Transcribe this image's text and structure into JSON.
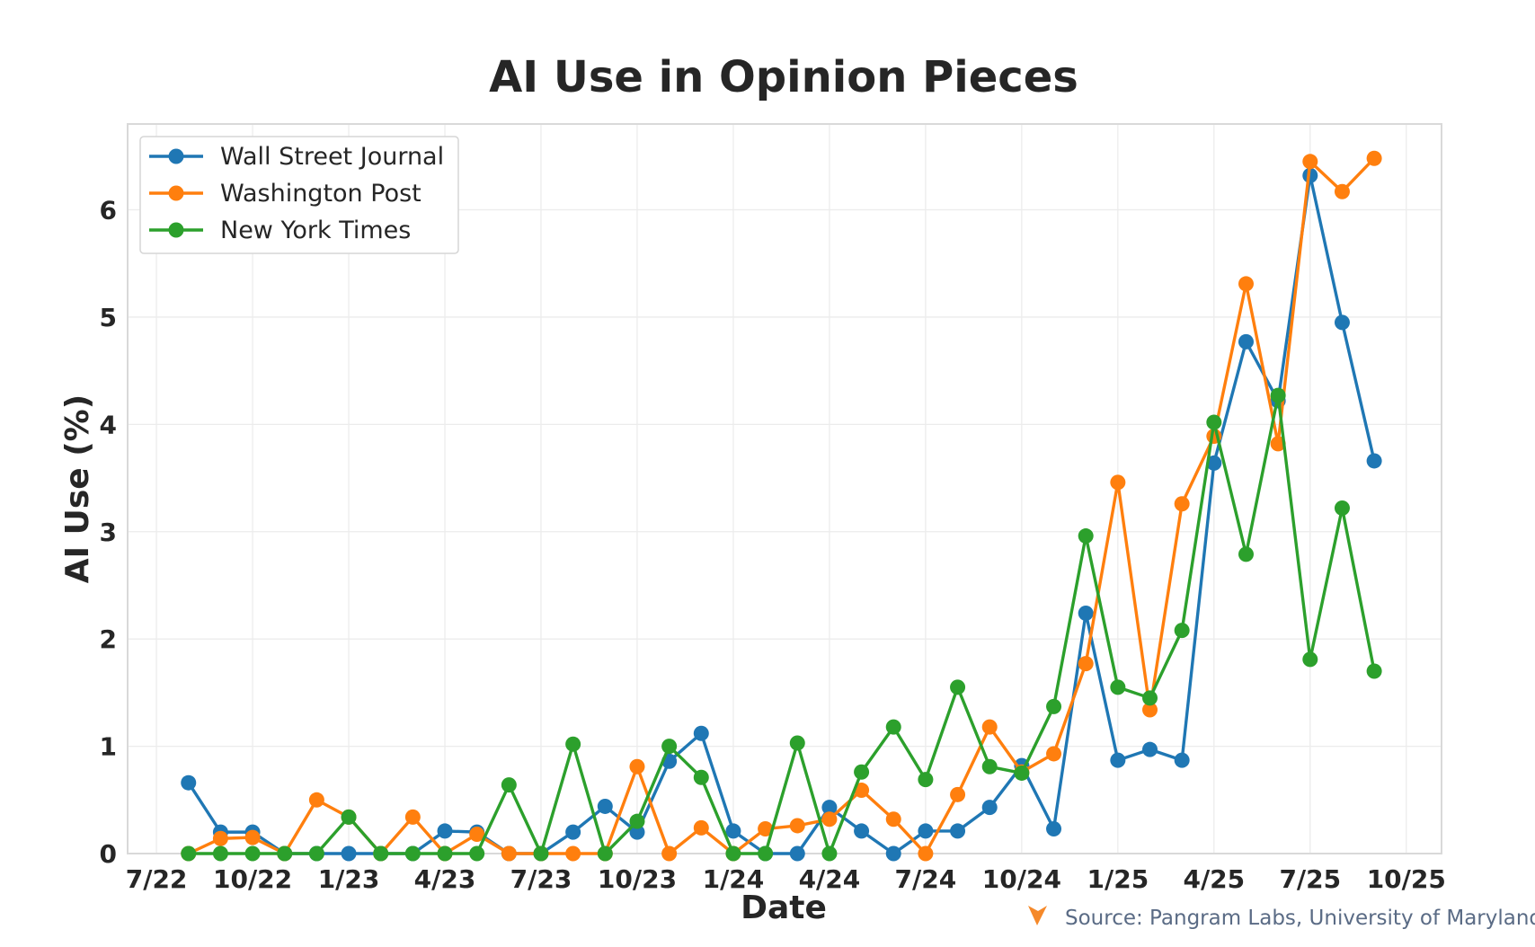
{
  "chart_data": {
    "type": "line",
    "title": "AI Use in Opinion Pieces",
    "xlabel": "Date",
    "ylabel": "AI Use (%)",
    "x_ticks": [
      {
        "value": 0,
        "label": "7/22"
      },
      {
        "value": 3,
        "label": "10/22"
      },
      {
        "value": 6,
        "label": "1/23"
      },
      {
        "value": 9,
        "label": "4/23"
      },
      {
        "value": 12,
        "label": "7/23"
      },
      {
        "value": 15,
        "label": "10/23"
      },
      {
        "value": 18,
        "label": "1/24"
      },
      {
        "value": 21,
        "label": "4/24"
      },
      {
        "value": 24,
        "label": "7/24"
      },
      {
        "value": 27,
        "label": "10/24"
      },
      {
        "value": 30,
        "label": "1/25"
      },
      {
        "value": 33,
        "label": "4/25"
      },
      {
        "value": 36,
        "label": "7/25"
      },
      {
        "value": 39,
        "label": "10/25"
      }
    ],
    "x_range": [
      -0.9,
      40.1
    ],
    "y_ticks": [
      0,
      1,
      2,
      3,
      4,
      5,
      6
    ],
    "ylim": [
      0,
      6.8
    ],
    "grid": true,
    "legend_position": "top-left",
    "x": [
      1,
      2,
      3,
      4,
      5,
      6,
      7,
      8,
      9,
      10,
      11,
      12,
      13,
      14,
      15,
      16,
      17,
      18,
      19,
      20,
      21,
      22,
      23,
      24,
      25,
      26,
      27,
      28,
      29,
      30,
      31,
      32,
      33,
      34,
      35,
      36,
      37,
      38
    ],
    "series": [
      {
        "name": "Wall Street Journal",
        "color": "#1f77b4",
        "values": [
          0.66,
          0.2,
          0.2,
          0.0,
          0.0,
          0.0,
          0.0,
          0.0,
          0.21,
          0.2,
          0.0,
          0.0,
          0.2,
          0.44,
          0.2,
          0.86,
          1.12,
          0.21,
          0.0,
          0.0,
          0.43,
          0.21,
          0.0,
          0.21,
          0.21,
          0.43,
          0.82,
          0.23,
          2.24,
          0.87,
          0.97,
          0.87,
          3.64,
          4.77,
          4.22,
          6.32,
          4.95,
          3.66
        ]
      },
      {
        "name": "Washington Post",
        "color": "#ff7f0e",
        "values": [
          0.0,
          0.14,
          0.15,
          0.0,
          0.5,
          0.34,
          0.0,
          0.34,
          0.0,
          0.18,
          0.0,
          0.0,
          0.0,
          0.0,
          0.81,
          0.0,
          0.24,
          0.0,
          0.23,
          0.26,
          0.32,
          0.59,
          0.32,
          0.0,
          0.55,
          1.18,
          0.76,
          0.93,
          1.77,
          3.46,
          1.34,
          3.26,
          3.89,
          5.31,
          3.82,
          6.45,
          6.17,
          6.48
        ]
      },
      {
        "name": "New York Times",
        "color": "#2ca02c",
        "values": [
          0.0,
          0.0,
          0.0,
          0.0,
          0.0,
          0.34,
          0.0,
          0.0,
          0.0,
          0.0,
          0.64,
          0.0,
          1.02,
          0.0,
          0.3,
          1.0,
          0.71,
          0.0,
          0.0,
          1.03,
          0.0,
          0.76,
          1.18,
          0.69,
          1.55,
          0.81,
          0.75,
          1.37,
          2.96,
          1.55,
          1.45,
          2.08,
          4.02,
          2.79,
          4.27,
          1.81,
          3.22,
          1.7
        ]
      }
    ],
    "source": "Source: Pangram Labs, University of Maryland",
    "source_icon": "pangram-logo-icon"
  }
}
